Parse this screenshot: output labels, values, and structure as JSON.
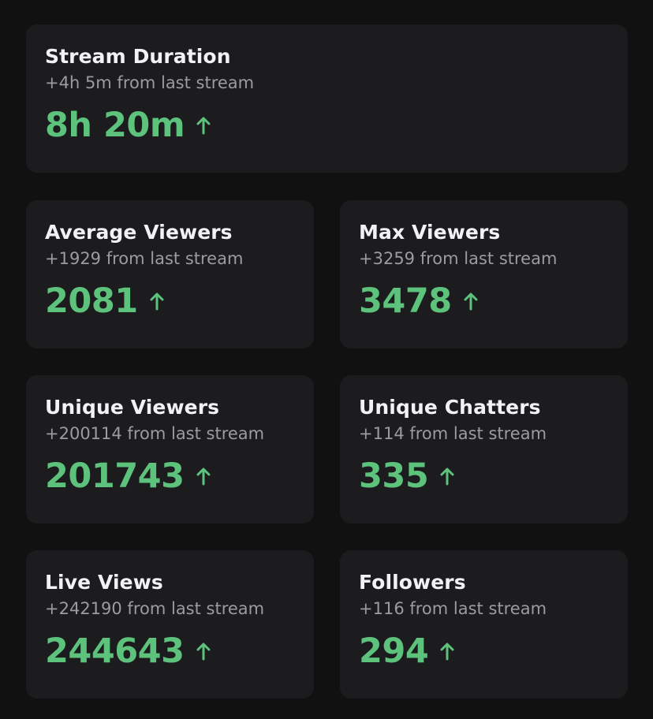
{
  "cards": [
    {
      "title": "Stream Duration",
      "change": "+4h 5m from last stream",
      "value": "8h 20m"
    },
    {
      "title": "Average Viewers",
      "change": "+1929 from last stream",
      "value": "2081"
    },
    {
      "title": "Max Viewers",
      "change": "+3259 from last stream",
      "value": "3478"
    },
    {
      "title": "Unique Viewers",
      "change": "+200114 from last stream",
      "value": "201743"
    },
    {
      "title": "Unique Chatters",
      "change": "+114 from last stream",
      "value": "335"
    },
    {
      "title": "Live Views",
      "change": "+242190 from last stream",
      "value": "244643"
    },
    {
      "title": "Followers",
      "change": "+116 from last stream",
      "value": "294"
    }
  ]
}
